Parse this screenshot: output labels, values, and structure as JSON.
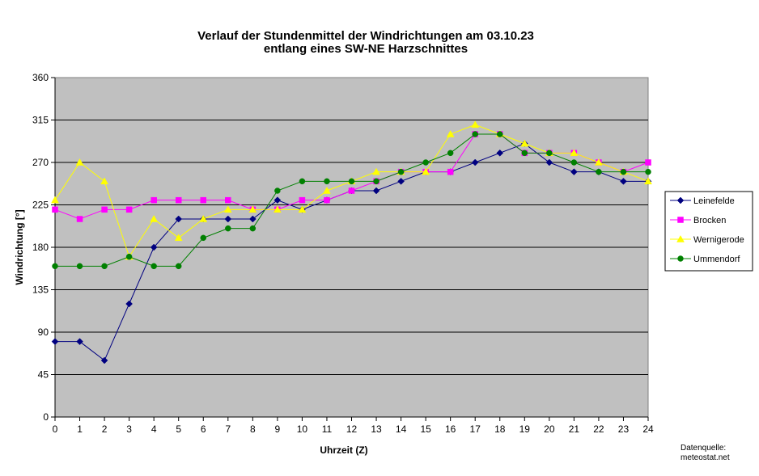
{
  "chart_data": {
    "type": "line",
    "title": "Verlauf der Stundenmittel der Windrichtungen am 03.10.23",
    "subtitle": "entlang eines SW-NE Harzschnittes",
    "xlabel": "Uhrzeit (Z)",
    "ylabel": "Windrichtung [°]",
    "xlim": [
      0,
      24
    ],
    "ylim": [
      0,
      360
    ],
    "x_ticks": [
      "0",
      "1",
      "2",
      "3",
      "4",
      "5",
      "6",
      "7",
      "8",
      "9",
      "10",
      "11",
      "12",
      "13",
      "14",
      "15",
      "16",
      "17",
      "18",
      "19",
      "20",
      "21",
      "22",
      "23",
      "24"
    ],
    "y_ticks": [
      "0",
      "45",
      "90",
      "135",
      "180",
      "225",
      "270",
      "315",
      "360"
    ],
    "grid": "horizontal",
    "legend_position": "right",
    "plot_background": "#c0c0c0",
    "x": [
      0,
      1,
      2,
      3,
      4,
      5,
      6,
      7,
      8,
      9,
      10,
      11,
      12,
      13,
      14,
      15,
      16,
      17,
      18,
      19,
      20,
      21,
      22,
      23,
      24
    ],
    "series": [
      {
        "name": "Leinefelde",
        "color": "#000080",
        "marker": "diamond",
        "values": [
          80,
          80,
          60,
          120,
          180,
          210,
          210,
          210,
          210,
          230,
          220,
          230,
          240,
          240,
          250,
          260,
          260,
          270,
          280,
          290,
          270,
          260,
          260,
          250,
          250
        ]
      },
      {
        "name": "Brocken",
        "color": "#ff00ff",
        "marker": "square",
        "values": [
          220,
          210,
          220,
          220,
          230,
          230,
          230,
          230,
          220,
          220,
          230,
          230,
          240,
          250,
          260,
          260,
          260,
          300,
          300,
          280,
          280,
          280,
          270,
          260,
          270
        ]
      },
      {
        "name": "Wernigerode",
        "color": "#ffff00",
        "marker": "triangle",
        "values": [
          230,
          270,
          250,
          170,
          210,
          190,
          210,
          220,
          220,
          220,
          220,
          240,
          250,
          260,
          260,
          260,
          300,
          310,
          300,
          290,
          280,
          280,
          270,
          260,
          250
        ]
      },
      {
        "name": "Ummendorf",
        "color": "#008000",
        "marker": "circle",
        "values": [
          160,
          160,
          160,
          170,
          160,
          160,
          190,
          200,
          200,
          240,
          250,
          250,
          250,
          250,
          260,
          270,
          280,
          300,
          300,
          280,
          280,
          270,
          260,
          260,
          260
        ]
      }
    ]
  },
  "source_note": {
    "line1": "Datenquelle:",
    "line2": "meteostat.net"
  }
}
